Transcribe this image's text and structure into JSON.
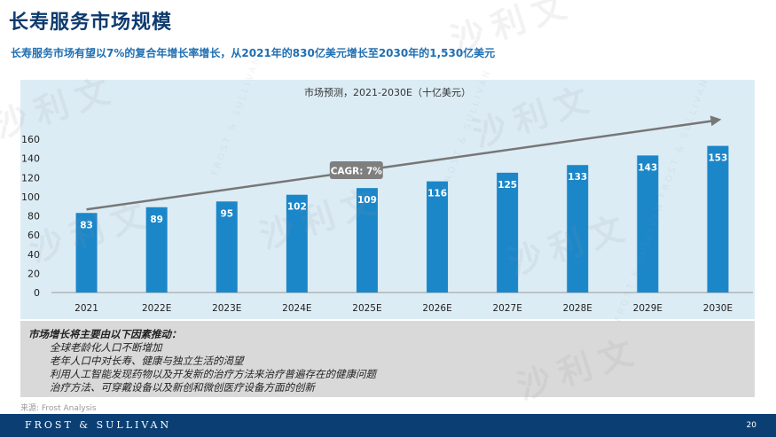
{
  "header": {
    "title": "长寿服务市场规模",
    "subtitle": "长寿服务市场有望以7%的复合年增长率增长，从2021年的830亿美元增长至2030年的1,530亿美元"
  },
  "chart_data": {
    "type": "bar",
    "title": "市场预测，2021-2030E（十亿美元）",
    "categories": [
      "2021",
      "2022E",
      "2023E",
      "2024E",
      "2025E",
      "2026E",
      "2027E",
      "2028E",
      "2029E",
      "2030E"
    ],
    "values": [
      83,
      89,
      95,
      102,
      109,
      116,
      125,
      133,
      143,
      153
    ],
    "ylim": [
      0,
      160
    ],
    "yticks": [
      0,
      20,
      40,
      60,
      80,
      100,
      120,
      140,
      160
    ],
    "xlabel": "",
    "ylabel": "",
    "grid": false,
    "bar_color": "#1b87c9",
    "trend_annotation": "CAGR: 7%"
  },
  "drivers": {
    "heading": "市场增长将主要由以下因素推动：",
    "items": [
      "全球老龄化人口不断增加",
      "老年人口中对长寿、健康与独立生活的渴望",
      "利用人工智能发现药物以及开发新的治疗方法来治疗普遍存在的健康问题",
      "治疗方法、可穿戴设备以及新创和微创医疗设备方面的创新"
    ]
  },
  "source": "来源: Frost Analysis",
  "footer": {
    "brand": "FROST & SULLIVAN",
    "page_number": "20"
  },
  "watermark": {
    "text": "沙利文",
    "text_en": "FROST & SULLIVAN"
  },
  "colors": {
    "title": "#0d3b6e",
    "subtitle": "#1f6fb2",
    "panel": "#dcecf5",
    "footer": "#0b3f73",
    "bar": "#1b87c9",
    "trend": "#777777"
  }
}
